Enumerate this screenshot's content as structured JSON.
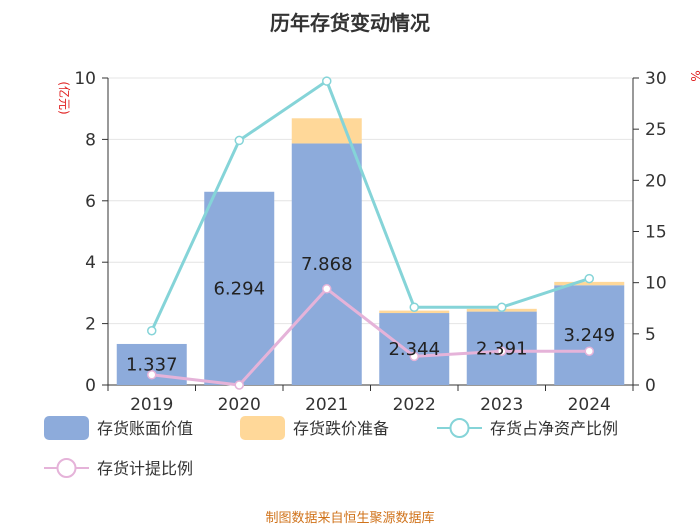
{
  "title": "历年存货变动情况",
  "source_note": "制图数据来自恒生聚源数据库",
  "colors": {
    "book_value": "#8dabdb",
    "impairment": "#ffd899",
    "net_asset_ratio": "#85d4d8",
    "provision_ratio": "#e5b3d9",
    "axis_unit": "#e02020"
  },
  "chart_data": {
    "type": "bar",
    "categories": [
      "2019",
      "2020",
      "2021",
      "2022",
      "2023",
      "2024"
    ],
    "y_left": {
      "unit_label": "(亿元)",
      "ylim": [
        0,
        10
      ],
      "ticks": [
        "0",
        "2",
        "4",
        "6",
        "8",
        "10"
      ]
    },
    "y_right": {
      "unit_label": "%",
      "ylim": [
        0,
        30
      ],
      "ticks": [
        "0",
        "5",
        "10",
        "15",
        "20",
        "25",
        "30"
      ]
    },
    "series": [
      {
        "name": "存货账面价值",
        "kind": "bar",
        "axis": "left",
        "values": [
          1.337,
          6.294,
          7.868,
          2.344,
          2.391,
          3.249
        ],
        "labels": [
          "1.337",
          "6.294",
          "7.868",
          "2.344",
          "2.391",
          "3.249"
        ]
      },
      {
        "name": "存货跌价准备",
        "kind": "bar-stack",
        "axis": "left",
        "values": [
          0.0,
          0.0,
          0.82,
          0.08,
          0.09,
          0.11
        ]
      },
      {
        "name": "存货占净资产比例",
        "kind": "line",
        "axis": "right",
        "values": [
          5.3,
          23.9,
          29.7,
          7.6,
          7.6,
          10.4
        ]
      },
      {
        "name": "存货计提比例",
        "kind": "line",
        "axis": "right",
        "values": [
          1.0,
          0.0,
          9.4,
          2.8,
          3.3,
          3.3
        ]
      }
    ],
    "grid": true,
    "legend_position": "bottom"
  }
}
